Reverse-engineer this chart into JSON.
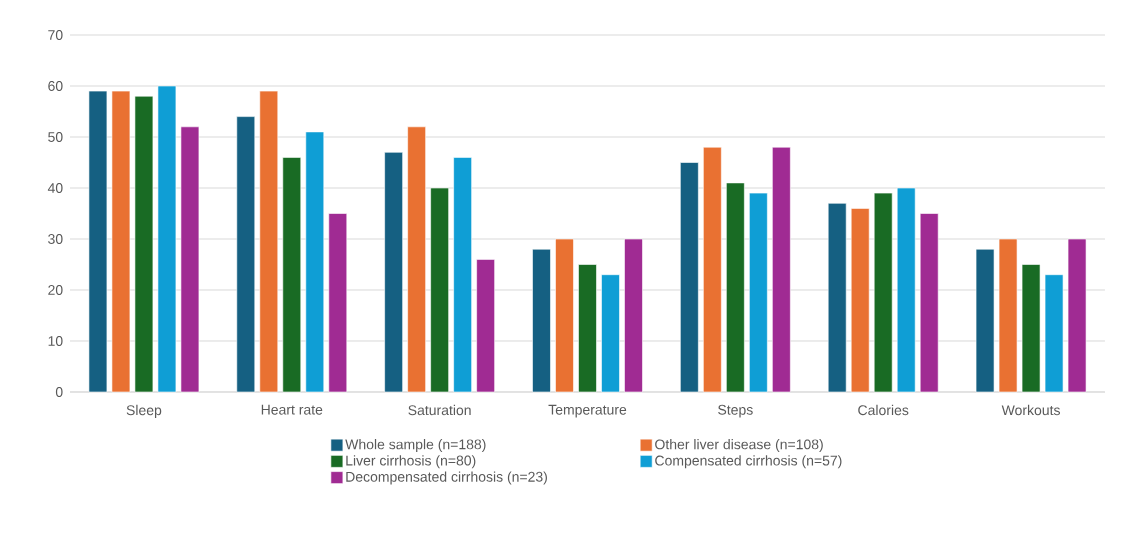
{
  "chart_data": {
    "type": "bar",
    "categories": [
      "Sleep",
      "Heart rate",
      "Saturation",
      "Temperature",
      "Steps",
      "Calories",
      "Workouts"
    ],
    "series": [
      {
        "name": "Whole sample (n=188)",
        "color": "#156082",
        "values": [
          59,
          54,
          47,
          28,
          45,
          37,
          28
        ]
      },
      {
        "name": "Other liver disease (n=108)",
        "color": "#e97132",
        "values": [
          59,
          59,
          52,
          30,
          48,
          36,
          30
        ]
      },
      {
        "name": "Liver cirrhosis (n=80)",
        "color": "#196b24",
        "values": [
          58,
          46,
          40,
          25,
          41,
          39,
          25
        ]
      },
      {
        "name": "Compensated cirrhosis (n=57)",
        "color": "#0f9ed5",
        "values": [
          60,
          51,
          46,
          23,
          39,
          40,
          23
        ]
      },
      {
        "name": "Decompensated cirrhosis (n=23)",
        "color": "#a02b93",
        "values": [
          52,
          35,
          26,
          30,
          48,
          35,
          30
        ]
      }
    ],
    "ylim": [
      0,
      70
    ],
    "yticks": [
      0,
      10,
      20,
      30,
      40,
      50,
      60,
      70
    ],
    "grid": "y",
    "legend": "bottom"
  }
}
